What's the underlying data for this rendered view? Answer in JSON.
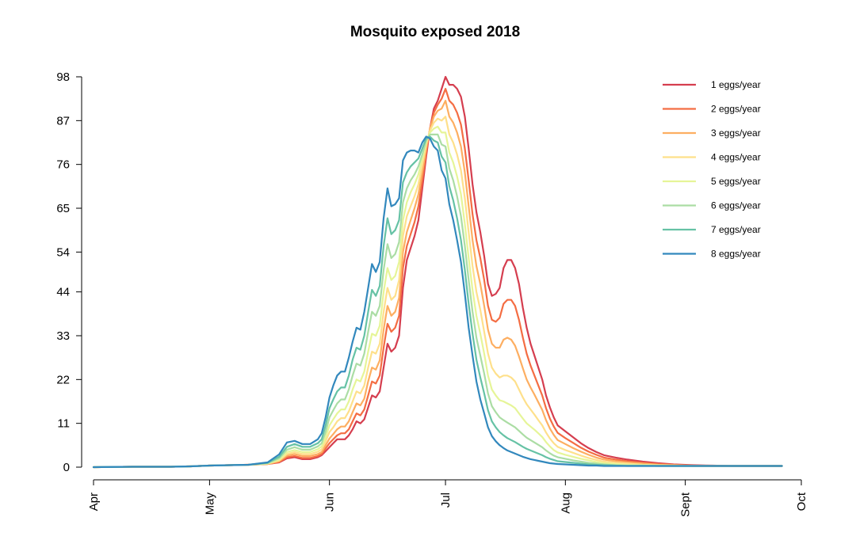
{
  "chart_data": {
    "type": "line",
    "title": "Mosquito exposed 2018",
    "xlabel": "",
    "ylabel": "",
    "x_ticks": [
      {
        "label": "Apr",
        "day": 0
      },
      {
        "label": "May",
        "day": 30
      },
      {
        "label": "Jun",
        "day": 61
      },
      {
        "label": "Jul",
        "day": 91
      },
      {
        "label": "Aug",
        "day": 122
      },
      {
        "label": "Sept",
        "day": 153
      },
      {
        "label": "Oct",
        "day": 183
      }
    ],
    "y_ticks": [
      0,
      11,
      22,
      33,
      44,
      54,
      65,
      76,
      87,
      98
    ],
    "xlim": [
      0,
      183
    ],
    "ylim": [
      0,
      98
    ],
    "grid": false,
    "legend": "top-right",
    "x": [
      0,
      10,
      20,
      25,
      30,
      35,
      40,
      45,
      48,
      50,
      52,
      54,
      56,
      58,
      59,
      60,
      61,
      62,
      63,
      64,
      65,
      66,
      67,
      68,
      69,
      70,
      71,
      72,
      73,
      74,
      75,
      76,
      77,
      78,
      79,
      80,
      81,
      82,
      83,
      84,
      85,
      86,
      87,
      88,
      89,
      90,
      91,
      92,
      93,
      94,
      95,
      96,
      97,
      98,
      99,
      100,
      101,
      102,
      103,
      104,
      105,
      106,
      107,
      108,
      109,
      110,
      111,
      112,
      113,
      114,
      115,
      116,
      117,
      118,
      119,
      120,
      122,
      124,
      126,
      128,
      130,
      132,
      135,
      138,
      142,
      146,
      150,
      155,
      160,
      165,
      170,
      175,
      178
    ],
    "series": [
      {
        "name": "1 eggs/year",
        "color": "#d53e4f",
        "values": [
          0,
          0.1,
          0.1,
          0.2,
          0.4,
          0.5,
          0.6,
          0.8,
          1.2,
          2.2,
          2.5,
          2.0,
          2.0,
          2.5,
          3.0,
          4.0,
          5.0,
          6.0,
          7.0,
          7.0,
          7.0,
          8.0,
          9.5,
          11.5,
          11.0,
          12.0,
          15.0,
          18.0,
          17.5,
          19.0,
          25.0,
          31.0,
          29.0,
          30.0,
          33.0,
          45.0,
          52.0,
          55.0,
          58.0,
          62.0,
          70.0,
          78.0,
          85.0,
          90.0,
          92.0,
          95.0,
          98.0,
          96.0,
          96.0,
          95.0,
          93.0,
          88.0,
          80.0,
          71.0,
          64.0,
          59.0,
          53.0,
          46.0,
          43.0,
          43.5,
          45.0,
          50.0,
          52.0,
          52.0,
          50.0,
          46.0,
          40.0,
          35.0,
          31.0,
          28.0,
          25.0,
          22.0,
          18.0,
          15.0,
          12.5,
          10.5,
          9.0,
          7.5,
          6.0,
          4.8,
          3.8,
          3.0,
          2.4,
          1.9,
          1.4,
          1.0,
          0.7,
          0.5,
          0.4,
          0.3,
          0.3,
          0.3,
          0.3
        ]
      },
      {
        "name": "2 eggs/year",
        "color": "#f46d43",
        "values": [
          0,
          0.1,
          0.1,
          0.2,
          0.4,
          0.5,
          0.6,
          0.8,
          1.3,
          2.5,
          2.8,
          2.3,
          2.3,
          2.8,
          3.3,
          4.7,
          6.0,
          7.0,
          8.0,
          8.5,
          8.5,
          9.5,
          11.5,
          13.5,
          13.0,
          14.5,
          18.0,
          21.5,
          21.0,
          23.0,
          30.0,
          36.0,
          34.0,
          35.0,
          38.0,
          50.0,
          55.5,
          58.5,
          61.5,
          65.5,
          72.0,
          79.0,
          85.0,
          89.0,
          91.0,
          92.5,
          95.0,
          92.0,
          91.0,
          89.0,
          86.0,
          80.0,
          72.0,
          63.5,
          57.0,
          52.5,
          47.0,
          40.5,
          37.0,
          36.5,
          37.5,
          41.0,
          42.0,
          42.0,
          40.5,
          37.0,
          32.5,
          28.5,
          25.5,
          23.0,
          20.5,
          18.0,
          14.8,
          12.2,
          10.2,
          8.6,
          7.3,
          6.1,
          4.9,
          3.9,
          3.1,
          2.4,
          1.9,
          1.5,
          1.1,
          0.8,
          0.6,
          0.4,
          0.3,
          0.3,
          0.3,
          0.3,
          0.3
        ]
      },
      {
        "name": "3 eggs/year",
        "color": "#fdae61",
        "values": [
          0,
          0.1,
          0.1,
          0.2,
          0.4,
          0.5,
          0.6,
          0.8,
          1.5,
          2.9,
          3.3,
          2.8,
          2.8,
          3.3,
          3.8,
          5.5,
          7.2,
          8.3,
          9.5,
          10.2,
          10.2,
          11.5,
          13.8,
          16.0,
          15.5,
          17.2,
          21.5,
          25.0,
          24.5,
          26.8,
          34.5,
          40.5,
          38.0,
          39.0,
          42.5,
          54.0,
          59.0,
          62.0,
          65.0,
          68.5,
          74.0,
          80.0,
          85.0,
          88.0,
          89.5,
          90.0,
          92.0,
          88.0,
          86.5,
          84.0,
          80.5,
          74.0,
          65.5,
          57.0,
          50.5,
          46.0,
          40.5,
          34.5,
          31.0,
          30.0,
          30.0,
          32.0,
          32.5,
          32.0,
          30.5,
          27.8,
          24.8,
          22.0,
          20.0,
          18.2,
          16.3,
          14.4,
          11.8,
          9.7,
          8.1,
          6.8,
          5.8,
          4.8,
          3.9,
          3.1,
          2.4,
          1.9,
          1.5,
          1.2,
          0.9,
          0.6,
          0.5,
          0.3,
          0.3,
          0.3,
          0.3,
          0.3,
          0.3
        ]
      },
      {
        "name": "4 eggs/year",
        "color": "#fee08b",
        "values": [
          0,
          0.1,
          0.1,
          0.2,
          0.4,
          0.5,
          0.6,
          0.9,
          1.7,
          3.3,
          3.8,
          3.3,
          3.3,
          3.9,
          4.5,
          6.5,
          8.8,
          10.0,
          11.5,
          12.3,
          12.3,
          14.0,
          16.5,
          19.0,
          18.5,
          20.5,
          25.0,
          29.0,
          28.5,
          31.0,
          39.0,
          45.0,
          42.0,
          43.0,
          47.0,
          58.0,
          63.0,
          65.5,
          68.0,
          71.0,
          76.0,
          81.0,
          84.5,
          86.5,
          87.5,
          87.0,
          88.0,
          83.5,
          81.5,
          78.5,
          74.5,
          67.5,
          59.0,
          50.5,
          44.0,
          39.5,
          34.0,
          28.5,
          25.0,
          23.5,
          22.5,
          23.0,
          23.0,
          22.5,
          21.5,
          19.5,
          17.5,
          15.8,
          14.5,
          13.2,
          11.8,
          10.5,
          8.7,
          7.2,
          6.0,
          5.1,
          4.3,
          3.6,
          2.9,
          2.3,
          1.8,
          1.4,
          1.1,
          0.9,
          0.6,
          0.5,
          0.4,
          0.3,
          0.3,
          0.3,
          0.3,
          0.3,
          0.3
        ]
      },
      {
        "name": "5 eggs/year",
        "color": "#e6f598",
        "values": [
          0,
          0.1,
          0.1,
          0.2,
          0.4,
          0.5,
          0.6,
          0.9,
          1.9,
          3.8,
          4.3,
          3.8,
          3.8,
          4.5,
          5.2,
          7.5,
          10.5,
          12.0,
          13.5,
          14.5,
          14.5,
          16.5,
          19.5,
          22.0,
          21.5,
          24.0,
          29.0,
          33.5,
          33.0,
          35.5,
          44.0,
          50.0,
          47.0,
          48.0,
          51.5,
          62.0,
          66.5,
          69.0,
          71.0,
          73.5,
          77.5,
          81.5,
          84.0,
          85.0,
          85.5,
          84.0,
          84.0,
          79.0,
          76.5,
          73.0,
          68.5,
          61.0,
          52.5,
          44.5,
          38.0,
          33.5,
          28.5,
          23.0,
          19.5,
          18.0,
          16.8,
          16.5,
          16.0,
          15.5,
          14.8,
          13.5,
          12.2,
          11.0,
          10.2,
          9.4,
          8.5,
          7.6,
          6.3,
          5.2,
          4.3,
          3.7,
          3.1,
          2.6,
          2.1,
          1.7,
          1.3,
          1.0,
          0.8,
          0.6,
          0.5,
          0.4,
          0.3,
          0.3,
          0.3,
          0.3,
          0.3,
          0.3,
          0.3
        ]
      },
      {
        "name": "6 eggs/year",
        "color": "#abdda4",
        "values": [
          0,
          0.1,
          0.1,
          0.2,
          0.4,
          0.5,
          0.6,
          1.0,
          2.2,
          4.4,
          5.0,
          4.4,
          4.4,
          5.2,
          6.0,
          8.8,
          12.5,
          14.3,
          16.0,
          17.0,
          17.0,
          19.5,
          23.0,
          26.0,
          25.5,
          28.5,
          34.0,
          39.0,
          38.0,
          40.5,
          49.5,
          56.0,
          52.5,
          53.5,
          56.5,
          66.5,
          70.0,
          72.0,
          73.5,
          75.5,
          78.5,
          82.0,
          83.5,
          83.5,
          83.5,
          81.0,
          80.5,
          75.0,
          72.0,
          68.0,
          63.0,
          55.5,
          47.0,
          39.0,
          32.5,
          28.0,
          23.5,
          18.5,
          15.3,
          13.8,
          12.5,
          11.8,
          11.2,
          10.6,
          10.0,
          9.1,
          8.2,
          7.4,
          6.8,
          6.2,
          5.6,
          5.0,
          4.2,
          3.5,
          2.9,
          2.5,
          2.1,
          1.7,
          1.4,
          1.1,
          0.9,
          0.7,
          0.5,
          0.4,
          0.4,
          0.3,
          0.3,
          0.3,
          0.3,
          0.3,
          0.3,
          0.3,
          0.3
        ]
      },
      {
        "name": "7 eggs/year",
        "color": "#66c2a5",
        "values": [
          0,
          0.1,
          0.1,
          0.2,
          0.4,
          0.5,
          0.6,
          1.1,
          2.6,
          5.1,
          5.8,
          5.1,
          5.1,
          6.0,
          7.0,
          10.5,
          14.8,
          17.0,
          19.0,
          20.0,
          20.0,
          23.0,
          27.0,
          30.0,
          29.5,
          33.0,
          39.0,
          44.5,
          43.0,
          45.5,
          55.5,
          62.5,
          58.5,
          59.5,
          62.0,
          71.5,
          74.0,
          75.5,
          76.5,
          77.5,
          80.0,
          82.5,
          83.0,
          82.0,
          81.5,
          78.0,
          76.5,
          70.5,
          67.0,
          62.5,
          57.0,
          49.5,
          41.0,
          33.5,
          27.0,
          22.5,
          18.5,
          14.3,
          11.5,
          10.0,
          8.8,
          8.0,
          7.3,
          6.8,
          6.3,
          5.7,
          5.1,
          4.6,
          4.2,
          3.8,
          3.4,
          3.0,
          2.5,
          2.1,
          1.8,
          1.5,
          1.3,
          1.1,
          0.9,
          0.7,
          0.6,
          0.5,
          0.4,
          0.3,
          0.3,
          0.3,
          0.3,
          0.3,
          0.3,
          0.3,
          0.3,
          0.3,
          0.3
        ]
      },
      {
        "name": "8 eggs/year",
        "color": "#3288bd",
        "values": [
          0,
          0.1,
          0.1,
          0.2,
          0.4,
          0.5,
          0.6,
          1.2,
          3.2,
          6.2,
          6.6,
          5.8,
          5.8,
          7.0,
          8.5,
          12.5,
          17.5,
          20.5,
          23.0,
          24.0,
          24.0,
          27.5,
          31.5,
          35.0,
          34.5,
          39.0,
          45.0,
          51.0,
          49.0,
          51.5,
          62.5,
          70.0,
          65.5,
          66.0,
          67.5,
          77.0,
          79.0,
          79.5,
          79.5,
          79.0,
          81.5,
          83.0,
          82.5,
          80.5,
          79.5,
          74.5,
          72.5,
          66.0,
          62.0,
          57.0,
          51.5,
          43.5,
          35.0,
          28.0,
          21.5,
          17.0,
          13.5,
          10.0,
          7.8,
          6.5,
          5.5,
          4.8,
          4.2,
          3.8,
          3.4,
          3.0,
          2.6,
          2.3,
          2.0,
          1.8,
          1.6,
          1.4,
          1.2,
          1.0,
          0.9,
          0.8,
          0.7,
          0.6,
          0.5,
          0.4,
          0.4,
          0.3,
          0.3,
          0.3,
          0.3,
          0.3,
          0.3,
          0.3,
          0.3,
          0.3,
          0.3,
          0.3,
          0.3
        ]
      }
    ]
  }
}
